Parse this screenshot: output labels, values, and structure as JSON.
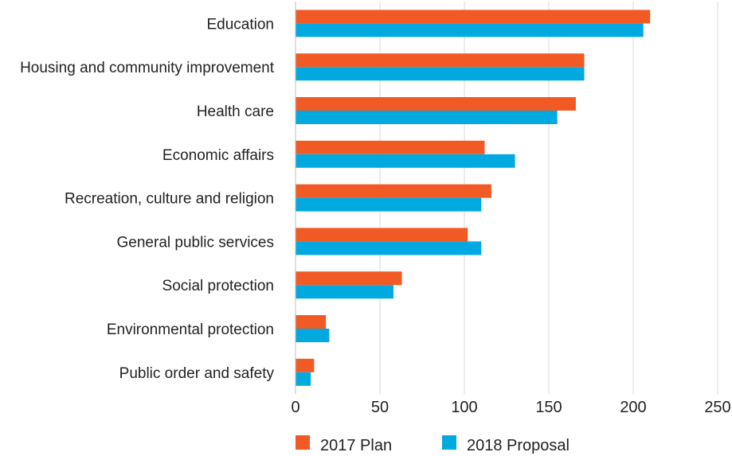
{
  "chart_data": {
    "type": "bar",
    "orientation": "horizontal",
    "title": "",
    "xlabel": "",
    "ylabel": "",
    "categories": [
      "Education",
      "Housing and community improvement",
      "Health care",
      "Economic affairs",
      "Recreation, culture and religion",
      "General public services",
      "Social protection",
      "Environmental protection",
      "Public order and safety"
    ],
    "series": [
      {
        "name": "2017 Plan",
        "color": "#f15a24",
        "values": [
          210,
          171,
          166,
          112,
          116,
          102,
          63,
          18,
          11
        ]
      },
      {
        "name": "2018 Proposal",
        "color": "#00a9e0",
        "values": [
          206,
          171,
          155,
          130,
          110,
          110,
          58,
          20,
          9
        ]
      }
    ],
    "xlim": [
      0,
      250
    ],
    "xticks": [
      0,
      50,
      100,
      150,
      200,
      250
    ],
    "grid": true,
    "legend_position": "bottom"
  }
}
